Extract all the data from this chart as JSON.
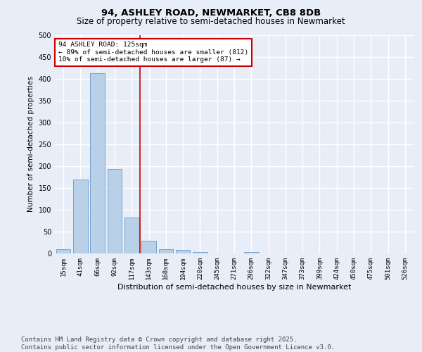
{
  "title1": "94, ASHLEY ROAD, NEWMARKET, CB8 8DB",
  "title2": "Size of property relative to semi-detached houses in Newmarket",
  "xlabel": "Distribution of semi-detached houses by size in Newmarket",
  "ylabel": "Number of semi-detached properties",
  "categories": [
    "15sqm",
    "41sqm",
    "66sqm",
    "92sqm",
    "117sqm",
    "143sqm",
    "168sqm",
    "194sqm",
    "220sqm",
    "245sqm",
    "271sqm",
    "296sqm",
    "322sqm",
    "347sqm",
    "373sqm",
    "399sqm",
    "424sqm",
    "450sqm",
    "475sqm",
    "501sqm",
    "526sqm"
  ],
  "values": [
    10,
    170,
    413,
    193,
    82,
    29,
    10,
    8,
    4,
    0,
    0,
    3,
    0,
    0,
    0,
    0,
    0,
    0,
    0,
    0,
    0
  ],
  "bar_color": "#b8d0e8",
  "bar_edge_color": "#6699cc",
  "vline_x": 4.5,
  "vline_color": "#cc0000",
  "annotation_text": "94 ASHLEY ROAD: 125sqm\n← 89% of semi-detached houses are smaller (812)\n10% of semi-detached houses are larger (87) →",
  "annotation_box_color": "#ffffff",
  "annotation_box_edge": "#cc0000",
  "ylim": [
    0,
    500
  ],
  "yticks": [
    0,
    50,
    100,
    150,
    200,
    250,
    300,
    350,
    400,
    450,
    500
  ],
  "footer": "Contains HM Land Registry data © Crown copyright and database right 2025.\nContains public sector information licensed under the Open Government Licence v3.0.",
  "bg_color": "#e8eef8",
  "plot_bg_color": "#e8eef8",
  "grid_color": "#ffffff",
  "title_fontsize": 9.5,
  "subtitle_fontsize": 8.5,
  "footer_fontsize": 6.5,
  "tick_fontsize": 6.5,
  "ylabel_fontsize": 7.5,
  "xlabel_fontsize": 8.0
}
